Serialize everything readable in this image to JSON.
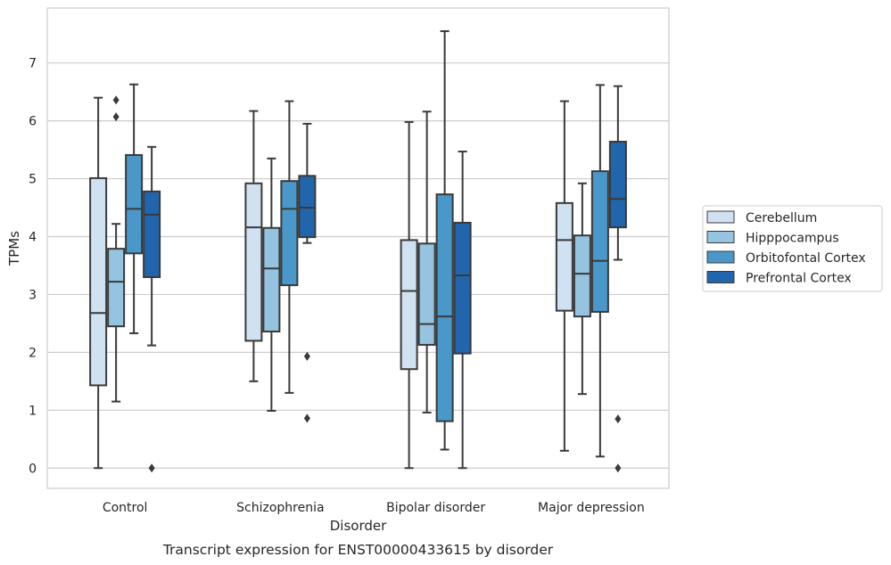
{
  "caption": "Transcript expression for ENST00000433615 by disorder",
  "chart_data": {
    "type": "box",
    "title": "",
    "xlabel": "Disorder",
    "ylabel": "TPMs",
    "ylim": [
      -0.35,
      7.95
    ],
    "yticks": [
      0,
      1,
      2,
      3,
      4,
      5,
      6,
      7
    ],
    "grid": "horizontal",
    "legend_position": "right",
    "categories": [
      "Control",
      "Schizophrenia",
      "Bipolar disorder",
      "Major depression"
    ],
    "series": [
      {
        "name": "Cerebellum",
        "color": "#d0e1f2",
        "boxes": [
          {
            "whislo": 0.0,
            "q1": 1.43,
            "med": 2.68,
            "q3": 5.01,
            "whishi": 6.4,
            "fliers": []
          },
          {
            "whislo": 1.5,
            "q1": 2.2,
            "med": 4.16,
            "q3": 4.92,
            "whishi": 6.17,
            "fliers": []
          },
          {
            "whislo": 0.0,
            "q1": 1.71,
            "med": 3.06,
            "q3": 3.94,
            "whishi": 5.98,
            "fliers": []
          },
          {
            "whislo": 0.3,
            "q1": 2.72,
            "med": 3.94,
            "q3": 4.58,
            "whishi": 6.34,
            "fliers": []
          }
        ]
      },
      {
        "name": "Hipppocampus",
        "color": "#94c4df",
        "boxes": [
          {
            "whislo": 1.15,
            "q1": 2.45,
            "med": 3.22,
            "q3": 3.79,
            "whishi": 4.22,
            "fliers": [
              6.07,
              6.36
            ]
          },
          {
            "whislo": 0.99,
            "q1": 2.36,
            "med": 3.45,
            "q3": 4.15,
            "whishi": 5.35,
            "fliers": []
          },
          {
            "whislo": 0.96,
            "q1": 2.13,
            "med": 2.49,
            "q3": 3.88,
            "whishi": 6.16,
            "fliers": []
          },
          {
            "whislo": 1.28,
            "q1": 2.62,
            "med": 3.36,
            "q3": 4.02,
            "whishi": 4.92,
            "fliers": []
          }
        ]
      },
      {
        "name": "Orbitofontal Cortex",
        "color": "#4a98c9",
        "boxes": [
          {
            "whislo": 2.33,
            "q1": 3.71,
            "med": 4.48,
            "q3": 5.41,
            "whishi": 6.63,
            "fliers": []
          },
          {
            "whislo": 1.3,
            "q1": 3.16,
            "med": 4.48,
            "q3": 4.96,
            "whishi": 6.34,
            "fliers": []
          },
          {
            "whislo": 0.32,
            "q1": 0.81,
            "med": 2.62,
            "q3": 4.73,
            "whishi": 7.55,
            "fliers": []
          },
          {
            "whislo": 0.2,
            "q1": 2.7,
            "med": 3.58,
            "q3": 5.13,
            "whishi": 6.62,
            "fliers": []
          }
        ]
      },
      {
        "name": "Prefrontal Cortex",
        "color": "#2166ac",
        "boxes": [
          {
            "whislo": 2.12,
            "q1": 3.3,
            "med": 4.38,
            "q3": 4.78,
            "whishi": 5.55,
            "fliers": [
              0.0
            ]
          },
          {
            "whislo": 3.89,
            "q1": 3.99,
            "med": 4.5,
            "q3": 5.05,
            "whishi": 5.95,
            "fliers": [
              0.86,
              1.93
            ]
          },
          {
            "whislo": 0.0,
            "q1": 1.98,
            "med": 3.33,
            "q3": 4.24,
            "whishi": 5.47,
            "fliers": []
          },
          {
            "whislo": 3.6,
            "q1": 4.16,
            "med": 4.65,
            "q3": 5.64,
            "whishi": 6.6,
            "fliers": [
              0.0,
              0.85
            ]
          }
        ]
      }
    ]
  }
}
